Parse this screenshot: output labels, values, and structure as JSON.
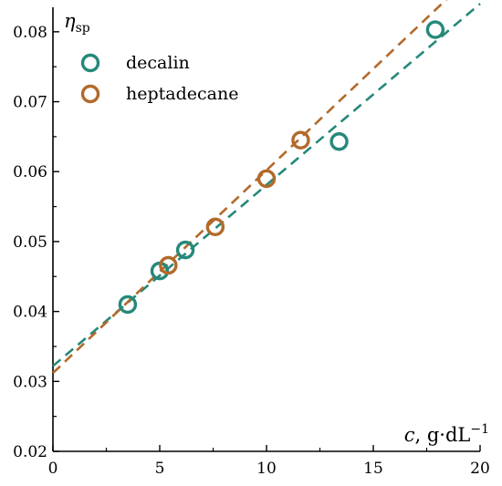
{
  "chart_data": {
    "type": "scatter",
    "xlim": [
      0,
      20
    ],
    "ylim": [
      0.02,
      0.085
    ],
    "x_ticks": [
      0,
      5,
      10,
      15,
      20
    ],
    "y_ticks": [
      0.02,
      0.03,
      0.04,
      0.05,
      0.06,
      0.07,
      0.08
    ],
    "x_tick_labels": [
      "0",
      "5",
      "10",
      "15",
      "20"
    ],
    "y_tick_labels": [
      "0.02",
      "0.03",
      "0.04",
      "0.05",
      "0.06",
      "0.07",
      "0.08"
    ],
    "xlabel": {
      "symbol": "c",
      "separator": ", g·dL",
      "exponent": "−1"
    },
    "ylabel": {
      "symbol": "η",
      "subscript": "sp"
    },
    "legend_position": "top-left",
    "grid": false,
    "series": [
      {
        "name": "decalin",
        "color": "#25897a",
        "x": [
          3.5,
          5.0,
          6.2,
          13.4,
          17.9
        ],
        "y": [
          0.041,
          0.0458,
          0.0488,
          0.0643,
          0.0803
        ],
        "fit": {
          "intercept": 0.0322,
          "slope": 0.00259,
          "x_range": [
            0,
            20
          ]
        }
      },
      {
        "name": "heptadecane",
        "color": "#b26a2a",
        "x": [
          5.4,
          7.6,
          10.0,
          11.6
        ],
        "y": [
          0.0466,
          0.0521,
          0.059,
          0.0645
        ],
        "fit": {
          "intercept": 0.0312,
          "slope": 0.0029,
          "x_range": [
            0,
            19.4
          ]
        }
      }
    ]
  }
}
